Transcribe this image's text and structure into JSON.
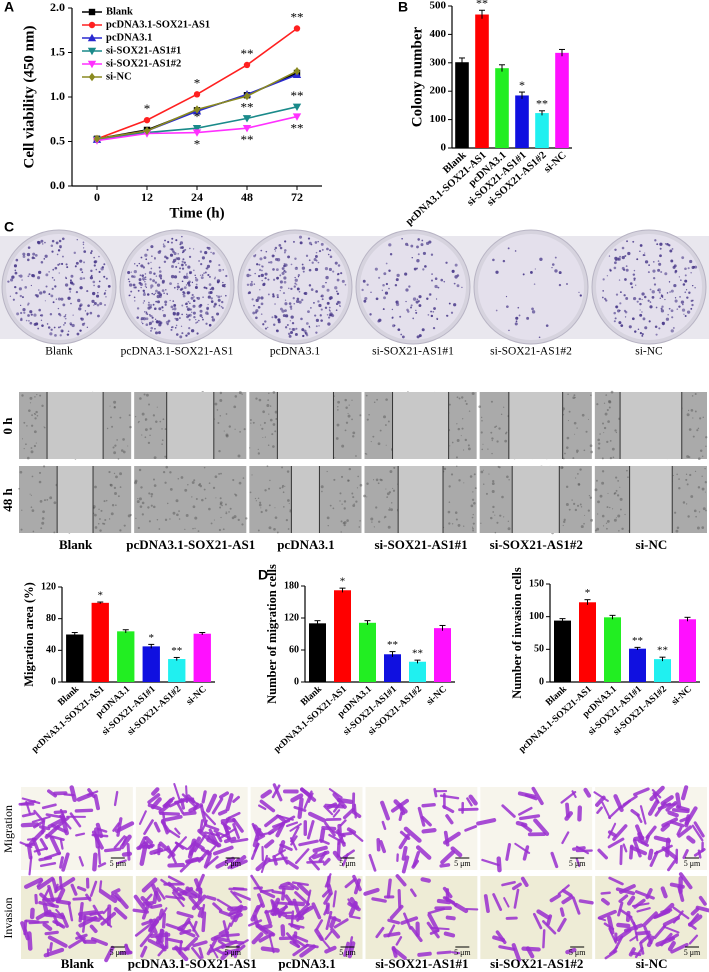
{
  "panel_labels": [
    "A",
    "B",
    "C",
    "D"
  ],
  "chart_data": [
    {
      "type": "line",
      "y_label": "Cell viability (450 nm)",
      "x_label": "Time (h)",
      "categories": [
        "0",
        "12",
        "24",
        "48",
        "72"
      ],
      "ylim": [
        0,
        2.0
      ],
      "yticks": [
        {
          "value": 0,
          "label": "0.0"
        },
        {
          "value": 0.5,
          "label": "0.5"
        },
        {
          "value": 1.0,
          "label": "1.0"
        },
        {
          "value": 1.5,
          "label": "1.5"
        },
        {
          "value": 2.0,
          "label": "2.0"
        }
      ],
      "legend": "upper left",
      "series": [
        {
          "name": "Blank",
          "color": "#000000",
          "marker": "square",
          "values": [
            0.53,
            0.63,
            0.85,
            1.02,
            1.27
          ],
          "sig": [
            null,
            null,
            null,
            null,
            null
          ]
        },
        {
          "name": "pcDNA3.1-SOX21-AS1",
          "color": "#ff2020",
          "marker": "circle",
          "values": [
            0.53,
            0.74,
            1.03,
            1.36,
            1.77
          ],
          "sig": [
            null,
            "*",
            "*",
            "**",
            "**"
          ]
        },
        {
          "name": "pcDNA3.1",
          "color": "#2a2ad0",
          "marker": "triangle",
          "values": [
            0.52,
            0.62,
            0.84,
            1.03,
            1.25
          ],
          "sig": [
            null,
            null,
            null,
            null,
            null
          ]
        },
        {
          "name": "si-SOX21-AS1#1",
          "color": "#1a8a8a",
          "marker": "down-triangle",
          "values": [
            0.52,
            0.6,
            0.65,
            0.76,
            0.89
          ],
          "sig": [
            null,
            null,
            "*",
            "**",
            "**"
          ]
        },
        {
          "name": "si-SOX21-AS1#2",
          "color": "#ff30ff",
          "marker": "down-triangle",
          "values": [
            0.51,
            0.59,
            0.6,
            0.65,
            0.78
          ],
          "sig": [
            null,
            null,
            "*",
            "**",
            "**"
          ]
        },
        {
          "name": "si-NC",
          "color": "#8a8a20",
          "marker": "diamond",
          "values": [
            0.53,
            0.62,
            0.86,
            1.01,
            1.29
          ],
          "sig": [
            null,
            null,
            null,
            null,
            null
          ]
        }
      ]
    },
    {
      "type": "bar",
      "y_label": "Colony number",
      "categories": [
        "Blank",
        "pcDNA3.1-SOX21-AS1",
        "pcDNA3.1",
        "si-SOX21-AS1#1",
        "si-SOX21-AS1#2",
        "si-NC"
      ],
      "values": [
        302,
        470,
        281,
        185,
        123,
        335
      ],
      "errors": [
        15,
        15,
        12,
        12,
        8,
        12
      ],
      "sig": [
        null,
        "**",
        null,
        "*",
        "**",
        null
      ],
      "colors": [
        "#000000",
        "#ff0000",
        "#22ee22",
        "#1010e0",
        "#20f0f0",
        "#ff10ff"
      ],
      "ylim": [
        0,
        500
      ],
      "yticks": [
        0,
        100,
        200,
        300,
        400,
        500
      ]
    },
    {
      "type": "bar",
      "y_label": "Migration area (%)",
      "categories": [
        "Blank",
        "pcDNA3.1-SOX21-AS1",
        "pcDNA3.1",
        "si-SOX21-AS1#1",
        "si-SOX21-AS1#2",
        "si-NC"
      ],
      "values": [
        60,
        100,
        64,
        45,
        29,
        61
      ],
      "errors": [
        2.5,
        1,
        2,
        2.5,
        2,
        1.5
      ],
      "sig": [
        null,
        "*",
        null,
        "*",
        "**",
        null
      ],
      "colors": [
        "#000000",
        "#ff0000",
        "#22ee22",
        "#1010e0",
        "#20f0f0",
        "#ff10ff"
      ],
      "ylim": [
        0,
        120
      ],
      "yticks": [
        0,
        40,
        80,
        120
      ]
    },
    {
      "type": "bar",
      "y_label": "Number of migration cells",
      "categories": [
        "Blank",
        "pcDNA3.1-SOX21-AS1",
        "pcDNA3.1",
        "si-SOX21-AS1#1",
        "si-SOX21-AS1#2",
        "si-NC"
      ],
      "values": [
        110,
        172,
        111,
        52,
        38,
        101
      ],
      "errors": [
        5,
        4,
        4,
        5,
        3,
        5
      ],
      "sig": [
        null,
        "*",
        null,
        "**",
        "**",
        null
      ],
      "colors": [
        "#000000",
        "#ff0000",
        "#22ee22",
        "#1010e0",
        "#20f0f0",
        "#ff10ff"
      ],
      "ylim": [
        0,
        180
      ],
      "yticks": [
        0,
        60,
        120,
        180
      ]
    },
    {
      "type": "bar",
      "y_label": "Number of invasion cells",
      "categories": [
        "Blank",
        "pcDNA3.1-SOX21-AS1",
        "pcDNA3.1",
        "si-SOX21-AS1#1",
        "si-SOX21-AS1#2",
        "si-NC"
      ],
      "values": [
        94,
        122,
        99,
        51,
        35,
        96
      ],
      "errors": [
        3,
        4,
        3,
        2,
        3,
        3
      ],
      "sig": [
        null,
        "*",
        null,
        "**",
        "**",
        null
      ],
      "colors": [
        "#000000",
        "#ff0000",
        "#22ee22",
        "#1010e0",
        "#20f0f0",
        "#ff10ff"
      ],
      "ylim": [
        0,
        150
      ],
      "yticks": [
        0,
        50,
        100,
        150
      ]
    }
  ],
  "colony_images": {
    "labels": [
      "Blank",
      "pcDNA3.1-SOX21-AS1",
      "pcDNA3.1",
      "si-SOX21-AS1#1",
      "si-SOX21-AS1#2",
      "si-NC"
    ]
  },
  "wound_images": {
    "rows": [
      "0 h",
      "48 h"
    ],
    "labels": [
      "Blank",
      "pcDNA3.1-SOX21-AS1",
      "pcDNA3.1",
      "si-SOX21-AS1#1",
      "si-SOX21-AS1#2",
      "si-NC"
    ]
  },
  "transwell_images": {
    "rows": [
      "Migration",
      "Invasion"
    ],
    "labels": [
      "Blank",
      "pcDNA3.1-SOX21-AS1",
      "pcDNA3.1",
      "si-SOX21-AS1#1",
      "si-SOX21-AS1#2",
      "si-NC"
    ],
    "scale_bar": "5 μm"
  }
}
